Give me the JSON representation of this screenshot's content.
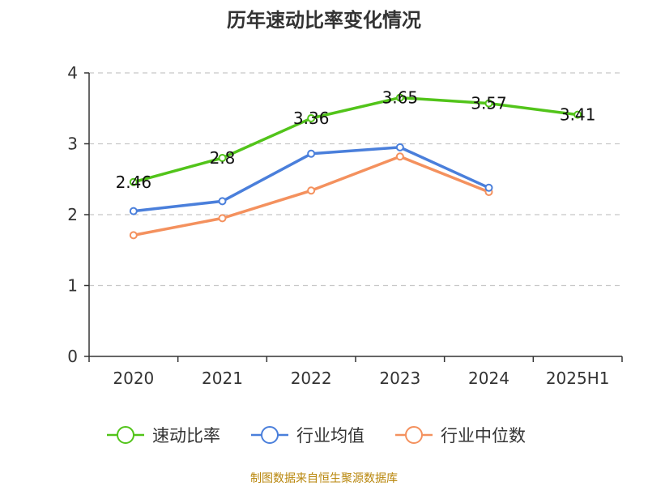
{
  "chart_data": {
    "type": "line",
    "title": "历年速动比率变化情况",
    "categories": [
      "2020",
      "2021",
      "2022",
      "2023",
      "2024",
      "2025H1"
    ],
    "ylim": [
      0,
      4
    ],
    "yticks": [
      0,
      1,
      2,
      3,
      4
    ],
    "grid": true,
    "legend_position": "bottom",
    "series": [
      {
        "name": "速动比率",
        "color": "#52c41a",
        "values": [
          2.46,
          2.8,
          3.36,
          3.65,
          3.57,
          3.41
        ],
        "labels": [
          "2.46",
          "2.8",
          "3.36",
          "3.65",
          "3.57",
          "3.41"
        ],
        "show_labels": true
      },
      {
        "name": "行业均值",
        "color": "#4a7fdb",
        "values": [
          2.05,
          2.19,
          2.86,
          2.95,
          2.38,
          null
        ],
        "show_labels": false
      },
      {
        "name": "行业中位数",
        "color": "#f4915e",
        "values": [
          1.71,
          1.95,
          2.34,
          2.82,
          2.32,
          null
        ],
        "show_labels": false
      }
    ]
  },
  "source": "制图数据来自恒生聚源数据库"
}
